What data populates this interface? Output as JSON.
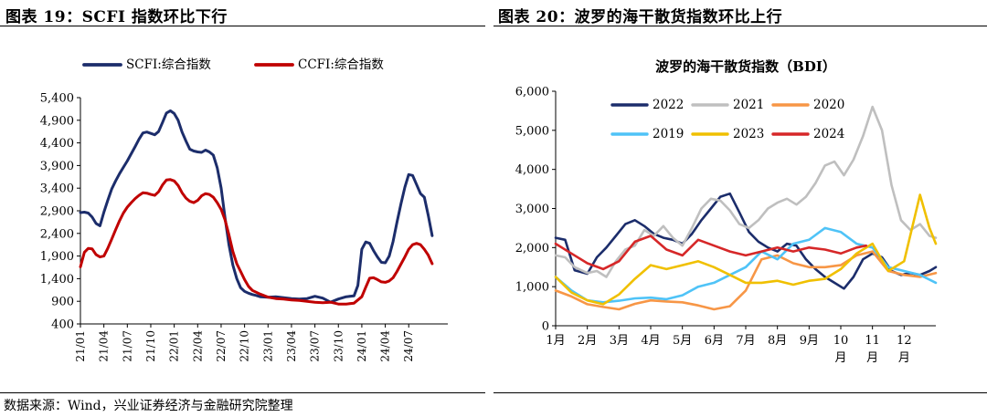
{
  "figures": {
    "left_title": "图表 19：SCFI 指数环比下行",
    "right_title": "图表 20：波罗的海干散货指数环比上行",
    "source": "数据来源：Wind，兴业证券经济与金融研究院整理"
  },
  "chart_data": [
    {
      "type": "line",
      "title": "",
      "xlabel": "",
      "ylabel": "",
      "ylim": [
        400,
        5400
      ],
      "yticks": [
        400,
        900,
        1400,
        1900,
        2400,
        2900,
        3400,
        3900,
        4400,
        4900,
        5400
      ],
      "yticklabels": [
        "400",
        "900",
        "1,400",
        "1,900",
        "2,400",
        "2,900",
        "3,400",
        "3,900",
        "4,400",
        "4,900",
        "5,400"
      ],
      "xlim": [
        0,
        47
      ],
      "xticks": [
        0,
        3,
        6,
        9,
        12,
        15,
        18,
        21,
        24,
        27,
        30,
        33,
        36,
        39,
        42
      ],
      "xticklabels": [
        "21/01",
        "21/04",
        "21/07",
        "21/10",
        "22/01",
        "22/04",
        "22/07",
        "22/10",
        "23/01",
        "23/04",
        "23/07",
        "23/10",
        "24/01",
        "24/04",
        "24/07"
      ],
      "grid": false,
      "legend": "top",
      "series": [
        {
          "name": "SCFI:综合指数",
          "color": "#1c2d6b",
          "x": [
            0,
            0.5,
            1,
            1.5,
            2,
            2.5,
            3,
            3.5,
            4,
            4.5,
            5,
            5.5,
            6,
            6.5,
            7,
            7.5,
            8,
            8.5,
            9,
            9.5,
            10,
            10.5,
            11,
            11.5,
            12,
            12.5,
            13,
            13.5,
            14,
            14.5,
            15,
            15.5,
            16,
            16.5,
            17,
            17.5,
            18,
            18.5,
            19,
            19.5,
            20,
            20.5,
            21,
            21.5,
            22,
            22.5,
            23,
            24,
            25,
            26,
            27,
            28,
            29,
            30,
            31,
            32,
            33,
            34,
            35,
            35.5,
            36,
            36.5,
            37,
            37.5,
            38,
            38.5,
            39,
            39.5,
            40,
            40.5,
            41,
            41.5,
            42,
            42.5,
            43,
            43.5,
            44,
            44.5,
            45
          ],
          "values": [
            2860,
            2870,
            2850,
            2760,
            2620,
            2570,
            2870,
            3130,
            3380,
            3560,
            3720,
            3860,
            4000,
            4160,
            4320,
            4480,
            4620,
            4640,
            4610,
            4580,
            4650,
            4850,
            5060,
            5110,
            5050,
            4900,
            4640,
            4440,
            4260,
            4220,
            4200,
            4190,
            4240,
            4200,
            4130,
            3850,
            3400,
            2750,
            2150,
            1700,
            1400,
            1200,
            1120,
            1080,
            1050,
            1030,
            1000,
            990,
            1000,
            980,
            960,
            950,
            960,
            1010,
            970,
            880,
            950,
            1000,
            1020,
            1250,
            2050,
            2210,
            2180,
            2020,
            1880,
            1760,
            1750,
            1900,
            2220,
            2650,
            3050,
            3420,
            3700,
            3680,
            3480,
            3280,
            3200,
            2800,
            2350
          ]
        },
        {
          "name": "CCFI:综合指数",
          "color": "#c00000",
          "x": [
            0,
            0.5,
            1,
            1.5,
            2,
            2.5,
            3,
            3.5,
            4,
            4.5,
            5,
            5.5,
            6,
            6.5,
            7,
            7.5,
            8,
            8.5,
            9,
            9.5,
            10,
            10.5,
            11,
            11.5,
            12,
            12.5,
            13,
            13.5,
            14,
            14.5,
            15,
            15.5,
            16,
            16.5,
            17,
            17.5,
            18,
            18.5,
            19,
            19.5,
            20,
            20.5,
            21,
            21.5,
            22,
            23,
            24,
            25,
            26,
            27,
            28,
            29,
            30,
            31,
            32,
            33,
            34,
            35,
            36,
            36.5,
            37,
            37.5,
            38,
            38.5,
            39,
            39.5,
            40,
            40.5,
            41,
            41.5,
            42,
            42.5,
            43,
            43.5,
            44,
            44.5,
            45
          ],
          "values": [
            1660,
            1980,
            2070,
            2060,
            1930,
            1880,
            1900,
            2070,
            2270,
            2480,
            2680,
            2850,
            2980,
            3080,
            3170,
            3240,
            3300,
            3290,
            3260,
            3240,
            3320,
            3470,
            3580,
            3590,
            3560,
            3460,
            3300,
            3180,
            3110,
            3080,
            3130,
            3230,
            3280,
            3260,
            3200,
            3080,
            2930,
            2700,
            2370,
            2000,
            1730,
            1560,
            1380,
            1230,
            1140,
            1060,
            990,
            960,
            950,
            930,
            920,
            900,
            880,
            870,
            880,
            840,
            840,
            860,
            1000,
            1210,
            1410,
            1420,
            1380,
            1330,
            1320,
            1350,
            1420,
            1560,
            1720,
            1880,
            2050,
            2150,
            2180,
            2150,
            2050,
            1920,
            1730
          ]
        }
      ]
    },
    {
      "type": "line",
      "title": "波罗的海干散货指数（BDI）",
      "xlabel": "",
      "ylabel": "",
      "ylim": [
        0,
        6000
      ],
      "yticks": [
        0,
        1000,
        2000,
        3000,
        4000,
        5000,
        6000
      ],
      "yticklabels": [
        "0",
        "1,000",
        "2,000",
        "3,000",
        "4,000",
        "5,000",
        "6,000"
      ],
      "xlim": [
        0,
        12
      ],
      "xticks": [
        0,
        1,
        2,
        3,
        4,
        5,
        6,
        7,
        8,
        9,
        10,
        11
      ],
      "xticklabels": [
        "1月",
        "2月",
        "3月",
        "4月",
        "5月",
        "6月",
        "7月",
        "8月",
        "9月",
        "10月",
        "11月",
        "12月"
      ],
      "grid": false,
      "legend": "top",
      "series": [
        {
          "name": "2022",
          "color": "#1c2d6b",
          "x": [
            0,
            0.3,
            0.6,
            1,
            1.3,
            1.6,
            1.9,
            2.2,
            2.5,
            2.8,
            3.1,
            3.4,
            3.7,
            4,
            4.3,
            4.6,
            4.9,
            5.2,
            5.5,
            5.8,
            6.1,
            6.4,
            6.7,
            7,
            7.3,
            7.6,
            7.9,
            8.2,
            8.5,
            8.8,
            9.1,
            9.4,
            9.7,
            10,
            10.3,
            10.6,
            10.9,
            11.2,
            11.5,
            11.8,
            12
          ],
          "values": [
            2250,
            2200,
            1420,
            1330,
            1750,
            2000,
            2300,
            2600,
            2700,
            2550,
            2350,
            2250,
            2200,
            2100,
            2350,
            2700,
            3000,
            3300,
            3380,
            2900,
            2400,
            2150,
            2000,
            1900,
            2100,
            2050,
            1700,
            1450,
            1250,
            1100,
            950,
            1250,
            1700,
            1850,
            1750,
            1400,
            1300,
            1350,
            1300,
            1400,
            1500
          ]
        },
        {
          "name": "2021",
          "color": "#bfbfbf",
          "x": [
            0,
            0.3,
            0.6,
            1,
            1.3,
            1.6,
            1.9,
            2.2,
            2.5,
            2.8,
            3.1,
            3.4,
            3.7,
            4,
            4.3,
            4.6,
            4.9,
            5.2,
            5.5,
            5.8,
            6.1,
            6.4,
            6.7,
            7,
            7.3,
            7.6,
            7.9,
            8.2,
            8.5,
            8.8,
            9.1,
            9.4,
            9.7,
            10,
            10.3,
            10.6,
            10.9,
            11.2,
            11.5,
            11.8,
            12
          ],
          "values": [
            1800,
            1750,
            1500,
            1350,
            1400,
            1250,
            1650,
            1950,
            2050,
            2450,
            2300,
            2550,
            2250,
            2050,
            2500,
            3000,
            3250,
            3200,
            2950,
            2600,
            2500,
            2700,
            3000,
            3150,
            3250,
            3100,
            3300,
            3650,
            4100,
            4200,
            3850,
            4250,
            4850,
            5600,
            5000,
            3600,
            2700,
            2450,
            2600,
            2300,
            2250
          ]
        },
        {
          "name": "2020",
          "color": "#f79646",
          "x": [
            0,
            0.5,
            1,
            1.5,
            2,
            2.5,
            3,
            3.5,
            4,
            4.5,
            5,
            5.5,
            6,
            6.5,
            7,
            7.5,
            8,
            8.5,
            9,
            9.5,
            10,
            10.5,
            11,
            11.5,
            12
          ],
          "values": [
            900,
            750,
            550,
            480,
            420,
            560,
            650,
            620,
            600,
            520,
            420,
            500,
            900,
            1700,
            1800,
            1600,
            1500,
            1500,
            1550,
            1800,
            1900,
            1400,
            1300,
            1250,
            1350
          ]
        },
        {
          "name": "2019",
          "color": "#4fc3f7",
          "x": [
            0,
            0.5,
            1,
            1.5,
            2,
            2.5,
            3,
            3.5,
            4,
            4.5,
            5,
            5.5,
            6,
            6.5,
            7,
            7.5,
            8,
            8.5,
            9,
            9.5,
            10,
            10.5,
            11,
            11.5,
            12
          ],
          "values": [
            1250,
            900,
            650,
            600,
            640,
            700,
            720,
            680,
            780,
            1000,
            1100,
            1300,
            1500,
            1900,
            1700,
            2100,
            2200,
            2500,
            2400,
            2100,
            2000,
            1500,
            1400,
            1300,
            1100
          ]
        },
        {
          "name": "2023",
          "color": "#f0c000",
          "x": [
            0,
            0.5,
            1,
            1.5,
            2,
            2.5,
            3,
            3.5,
            4,
            4.5,
            5,
            5.5,
            6,
            6.5,
            7,
            7.5,
            8,
            8.5,
            9,
            9.5,
            10,
            10.5,
            11,
            11.5,
            11.8,
            12
          ],
          "values": [
            1250,
            850,
            650,
            550,
            800,
            1200,
            1550,
            1450,
            1550,
            1650,
            1500,
            1300,
            1100,
            1100,
            1150,
            1050,
            1150,
            1200,
            1450,
            1850,
            2100,
            1400,
            1650,
            3350,
            2500,
            2100
          ]
        },
        {
          "name": "2024",
          "color": "#d62728",
          "x": [
            0,
            0.5,
            1,
            1.5,
            2,
            2.5,
            3,
            3.5,
            4,
            4.5,
            5,
            5.5,
            6,
            6.5,
            7,
            7.5,
            8,
            8.5,
            9,
            9.5,
            9.8
          ],
          "values": [
            2100,
            1850,
            1600,
            1450,
            1650,
            2150,
            2300,
            1950,
            1800,
            2200,
            2050,
            1900,
            1800,
            1900,
            2000,
            1900,
            2000,
            1950,
            1850,
            2000,
            2050
          ]
        }
      ]
    }
  ]
}
